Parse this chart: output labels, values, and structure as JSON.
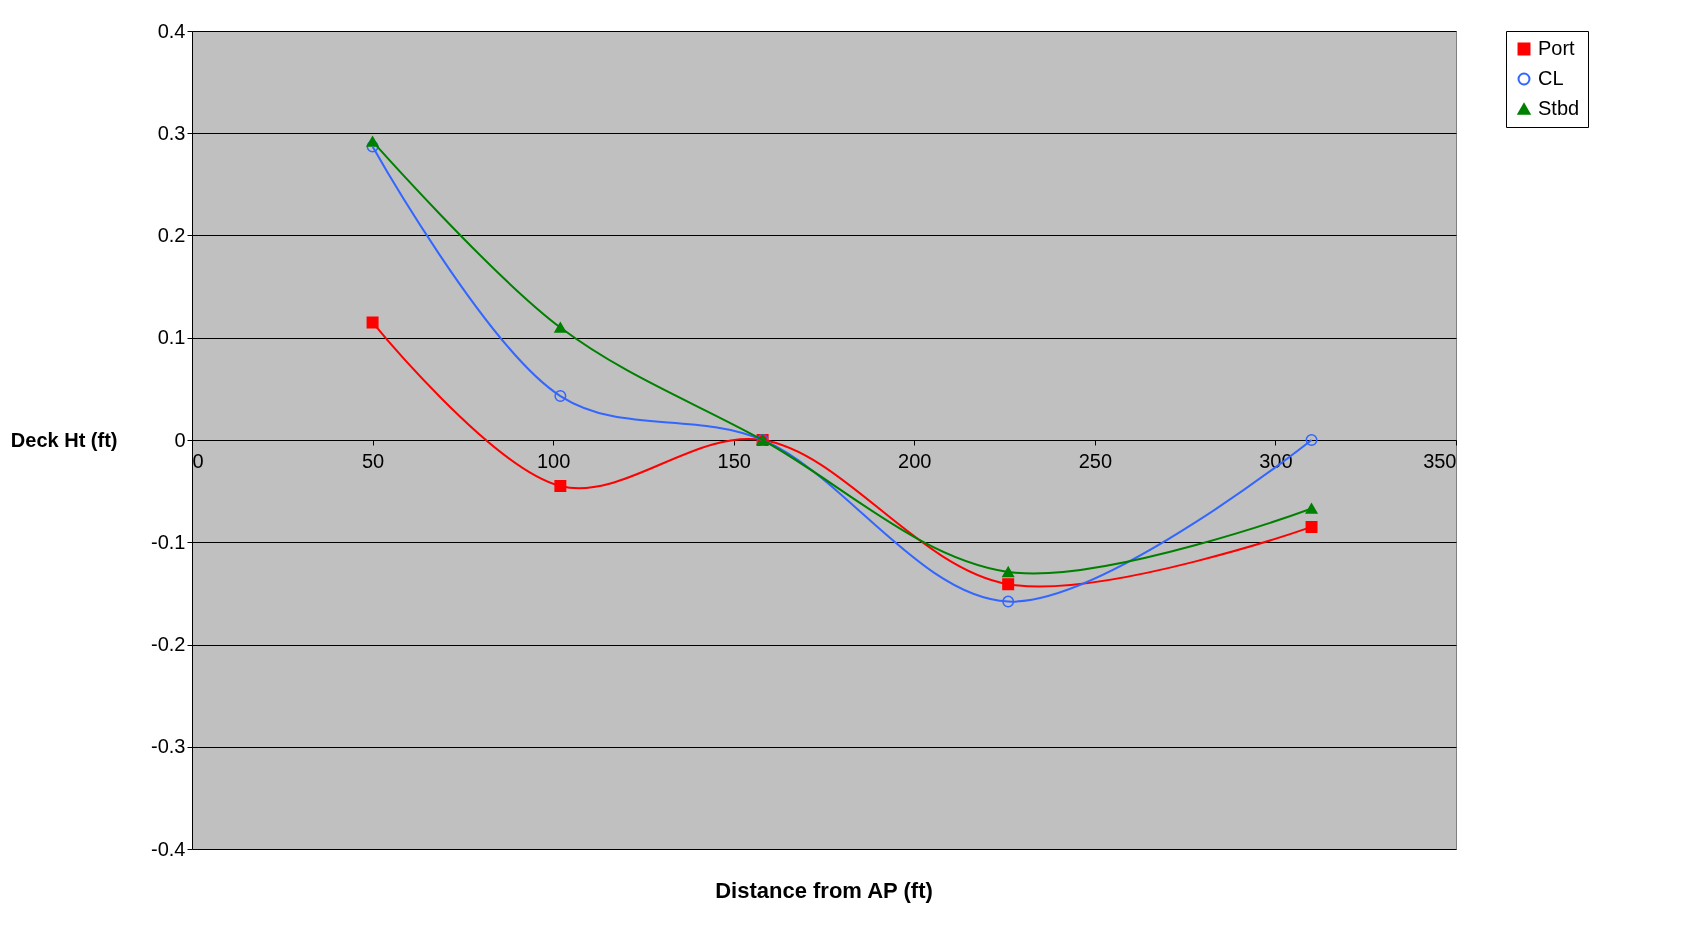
{
  "chart_data": {
    "type": "line",
    "xlabel": "Distance from AP (ft)",
    "ylabel": "Deck Ht (ft)",
    "x": [
      50,
      102,
      158,
      226,
      310
    ],
    "series": [
      {
        "name": "Port",
        "color": "#ff0000",
        "marker": "square",
        "values": [
          0.115,
          -0.045,
          0,
          -0.141,
          -0.085
        ]
      },
      {
        "name": "CL",
        "color": "#3366ff",
        "marker": "circle",
        "values": [
          0.287,
          0.043,
          0,
          -0.158,
          0
        ]
      },
      {
        "name": "Stbd",
        "color": "#008000",
        "marker": "triangle",
        "values": [
          0.292,
          0.11,
          0,
          -0.129,
          -0.067
        ]
      }
    ],
    "xlim": [
      0,
      350
    ],
    "xticks": [
      0,
      50,
      100,
      150,
      200,
      250,
      300,
      350
    ],
    "ylim": [
      -0.4,
      0.4
    ],
    "yticks": [
      -0.4,
      -0.3,
      -0.2,
      -0.1,
      0,
      0.1,
      0.2,
      0.3,
      0.4
    ],
    "grid": "y",
    "legend": "right",
    "line_style": "solid"
  }
}
